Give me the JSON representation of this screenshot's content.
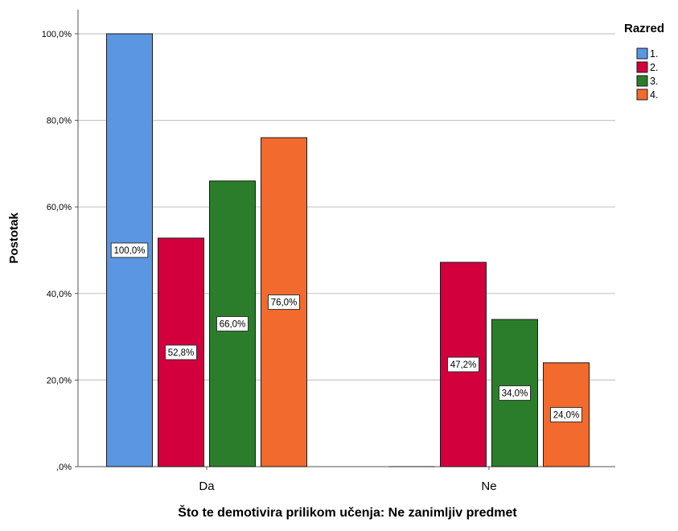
{
  "chart_data": {
    "type": "bar",
    "title": "",
    "xlabel": "Što te demotivira prilikom učenja: Ne zanimljiv predmet",
    "ylabel": "Postotak",
    "categories": [
      "Da",
      "Ne"
    ],
    "ylim": [
      0,
      100
    ],
    "yticks": [
      0,
      20,
      40,
      60,
      80,
      100
    ],
    "ytick_labels": [
      ",0%",
      "20,0%",
      "40,0%",
      "60,0%",
      "80,0%",
      "100,0%"
    ],
    "grid": true,
    "legend": {
      "title": "Razred",
      "position": "top-right"
    },
    "series": [
      {
        "name": "1.",
        "color": "#5b96e2",
        "values": [
          100.0,
          0.0
        ],
        "labels": [
          "100,0%",
          ""
        ]
      },
      {
        "name": "2.",
        "color": "#d2003c",
        "values": [
          52.8,
          47.2
        ],
        "labels": [
          "52,8%",
          "47,2%"
        ]
      },
      {
        "name": "3.",
        "color": "#2b7d2c",
        "values": [
          66.0,
          34.0
        ],
        "labels": [
          "66,0%",
          "34,0%"
        ]
      },
      {
        "name": "4.",
        "color": "#f26a2d",
        "values": [
          76.0,
          24.0
        ],
        "labels": [
          "76,0%",
          "24,0%"
        ]
      }
    ]
  }
}
